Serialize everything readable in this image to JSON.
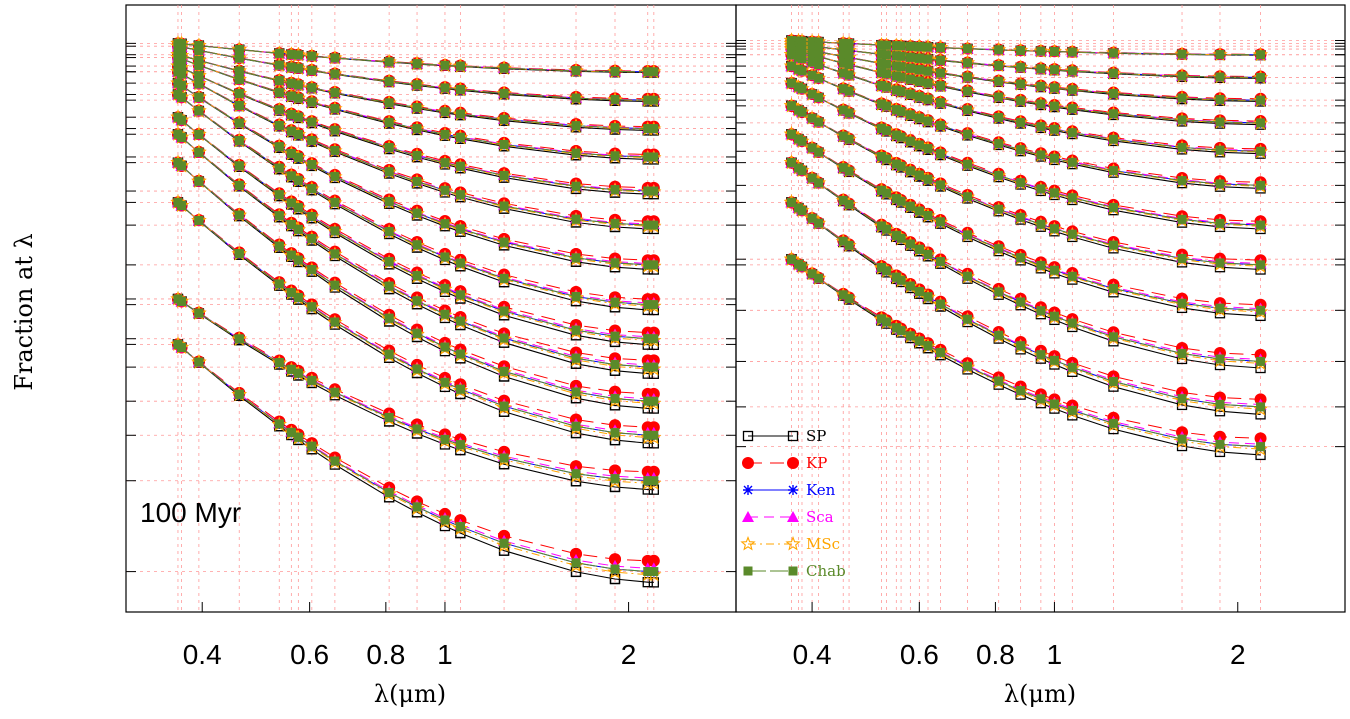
{
  "chart_data": {
    "type": "line",
    "ylabel": "Fraction at λ",
    "xlabel": "λ(μm)",
    "xscale": "log",
    "xlim": [
      0.3,
      3.0
    ],
    "ylim": [
      0,
      1
    ],
    "x_ticks": [
      0.4,
      0.6,
      0.8,
      1,
      2
    ],
    "x_tick_labels": [
      "0.4",
      "0.6",
      "0.8",
      "1",
      "2"
    ],
    "grid": true,
    "colors": {
      "SP": "#000000",
      "KP": "#ff0000",
      "Ken": "#0000ff",
      "Sca": "#ff00ff",
      "MSc": "#ffa500",
      "Chab": "#5a8a2a",
      "grid": "#ff9999"
    },
    "legend": {
      "position": "bottom-right of left panel",
      "entries": [
        {
          "key": "SP",
          "label": "SP",
          "marker": "open-square",
          "dash": "solid"
        },
        {
          "key": "KP",
          "label": "KP",
          "marker": "filled-circle",
          "dash": "long-dash"
        },
        {
          "key": "Ken",
          "label": "Ken",
          "marker": "asterisk",
          "dash": "solid"
        },
        {
          "key": "Sca",
          "label": "Sca",
          "marker": "filled-triangle",
          "dash": "dash"
        },
        {
          "key": "MSc",
          "label": "MSc",
          "marker": "open-star",
          "dash": "dash-dot"
        },
        {
          "key": "Chab",
          "label": "Chab",
          "marker": "filled-square",
          "dash": "long-solid"
        }
      ]
    },
    "panels": [
      {
        "annotation": "100 Myr",
        "wavelengths": [
          0.365,
          0.365,
          0.37,
          0.37,
          0.395,
          0.395,
          0.395,
          0.46,
          0.46,
          0.46,
          0.535,
          0.535,
          0.56,
          0.56,
          0.575,
          0.575,
          0.605,
          0.605,
          0.66,
          0.81,
          0.81,
          0.9,
          0.9,
          1.0,
          1.06,
          1.06,
          1.25,
          1.25,
          1.64,
          1.64,
          1.9,
          1.9,
          2.15,
          2.2
        ],
        "curves": [
          {
            "y_top": 0.98,
            "y_end": 0.93
          },
          {
            "y_top": 0.975,
            "y_end": 0.88
          },
          {
            "y_top": 0.96,
            "y_end": 0.83
          },
          {
            "y_top": 0.955,
            "y_end": 0.78
          },
          {
            "y_top": 0.94,
            "y_end": 0.72
          },
          {
            "y_top": 0.93,
            "y_end": 0.66
          },
          {
            "y_top": 0.91,
            "y_end": 0.59
          },
          {
            "y_top": 0.89,
            "y_end": 0.52
          },
          {
            "y_top": 0.85,
            "y_end": 0.46
          },
          {
            "y_top": 0.82,
            "y_end": 0.41
          },
          {
            "y_top": 0.77,
            "y_end": 0.35
          },
          {
            "y_top": 0.7,
            "y_end": 0.29
          },
          {
            "y_top": 0.53,
            "y_end": 0.21
          },
          {
            "y_top": 0.45,
            "y_end": 0.05
          }
        ]
      },
      {
        "annotation": "",
        "wavelengths": [
          0.37,
          0.37,
          0.37,
          0.38,
          0.385,
          0.4,
          0.41,
          0.45,
          0.46,
          0.52,
          0.52,
          0.53,
          0.55,
          0.55,
          0.56,
          0.58,
          0.58,
          0.6,
          0.6,
          0.6,
          0.62,
          0.62,
          0.65,
          0.65,
          0.72,
          0.81,
          0.88,
          0.95,
          1.0,
          1.07,
          1.25,
          1.62,
          1.87,
          2.18
        ],
        "curves": [
          {
            "y_top": 0.985,
            "y_end": 0.96
          },
          {
            "y_top": 0.98,
            "y_end": 0.92
          },
          {
            "y_top": 0.975,
            "y_end": 0.88
          },
          {
            "y_top": 0.97,
            "y_end": 0.84
          },
          {
            "y_top": 0.96,
            "y_end": 0.79
          },
          {
            "y_top": 0.94,
            "y_end": 0.73
          },
          {
            "y_top": 0.91,
            "y_end": 0.66
          },
          {
            "y_top": 0.87,
            "y_end": 0.59
          },
          {
            "y_top": 0.82,
            "y_end": 0.51
          },
          {
            "y_top": 0.77,
            "y_end": 0.42
          },
          {
            "y_top": 0.7,
            "y_end": 0.34
          },
          {
            "y_top": 0.6,
            "y_end": 0.27
          }
        ]
      }
    ]
  }
}
